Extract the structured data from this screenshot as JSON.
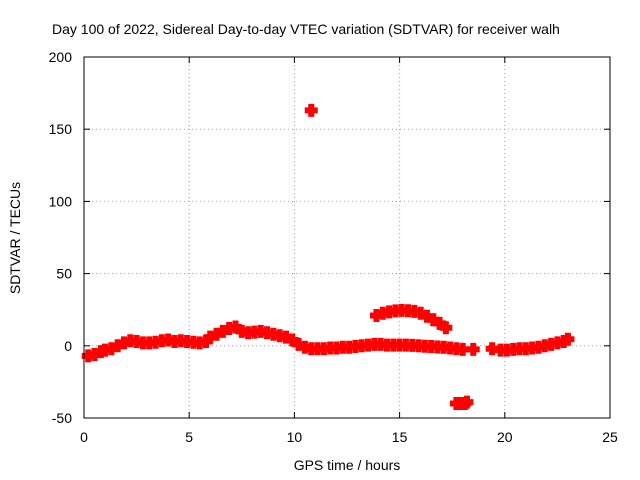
{
  "chart_data": {
    "type": "scatter",
    "title": "Day 100 of 2022, Sidereal Day-to-day VTEC variation (SDTVAR) for receiver walh",
    "xlabel": "GPS time / hours",
    "ylabel": "SDTVAR / TECUs",
    "xlim": [
      0,
      25
    ],
    "ylim": [
      -50,
      200
    ],
    "xticks": [
      0,
      5,
      10,
      15,
      20,
      25
    ],
    "yticks": [
      -50,
      0,
      50,
      100,
      150,
      200
    ],
    "grid": true,
    "color": "#ff0000",
    "marker": "plus",
    "series": [
      {
        "name": "main-trace",
        "x": [
          0.2,
          0.5,
          0.8,
          1.0,
          1.3,
          1.6,
          1.9,
          2.2,
          2.5,
          2.8,
          3.1,
          3.4,
          3.7,
          4.0,
          4.3,
          4.6,
          4.9,
          5.2,
          5.5,
          5.8,
          6.0,
          6.3,
          6.6,
          6.9,
          7.2,
          7.5,
          7.8,
          8.1,
          8.4,
          8.7,
          9.0,
          9.3,
          9.6,
          9.9,
          10.2,
          10.5,
          10.8,
          11.1,
          11.4,
          11.7,
          12.0,
          12.3,
          12.6,
          12.9,
          13.2,
          13.5,
          13.8,
          14.1,
          14.4,
          14.7,
          15.0,
          15.3,
          15.6,
          15.9,
          16.2,
          16.5,
          16.8,
          17.1,
          17.4,
          17.7,
          18.0,
          18.5,
          19.4,
          19.8,
          20.1,
          20.4,
          20.7,
          21.0,
          21.3,
          21.6,
          21.9,
          22.2,
          22.5,
          22.8,
          23.0
        ],
        "y": [
          -7,
          -6,
          -4,
          -3,
          -2,
          0,
          2,
          3.5,
          3,
          2,
          2,
          2.5,
          3.5,
          4,
          3,
          3.5,
          3,
          2.5,
          2,
          3,
          6,
          8,
          10,
          12,
          13,
          10,
          9,
          9.5,
          10,
          9,
          8,
          7,
          6,
          4,
          1,
          -1,
          -2,
          -2,
          -2,
          -1.5,
          -1.5,
          -1,
          -1,
          -0.5,
          0,
          0.5,
          1,
          1,
          0.5,
          0.5,
          0.5,
          0.5,
          0.3,
          0,
          -0.3,
          -0.5,
          -0.8,
          -1,
          -1.5,
          -2,
          -2.5,
          -2.5,
          -2,
          -3,
          -3,
          -2.5,
          -2,
          -2,
          -1.5,
          -1,
          0,
          1,
          2,
          3,
          4.5
        ]
      },
      {
        "name": "arc-segment",
        "x": [
          13.9,
          14.2,
          14.5,
          14.8,
          15.1,
          15.4,
          15.7,
          16.0,
          16.3,
          16.6,
          16.9,
          17.2
        ],
        "y": [
          21,
          22.5,
          23.5,
          24.2,
          24.5,
          24.3,
          23.8,
          22.5,
          20.5,
          18,
          15.5,
          12.5
        ]
      },
      {
        "name": "low-segment",
        "x": [
          17.7,
          17.8,
          17.9,
          18.0,
          18.1,
          18.2
        ],
        "y": [
          -40,
          -40,
          -40,
          -40,
          -40,
          -39
        ]
      },
      {
        "name": "outlier",
        "x": [
          10.8
        ],
        "y": [
          163
        ]
      }
    ]
  }
}
